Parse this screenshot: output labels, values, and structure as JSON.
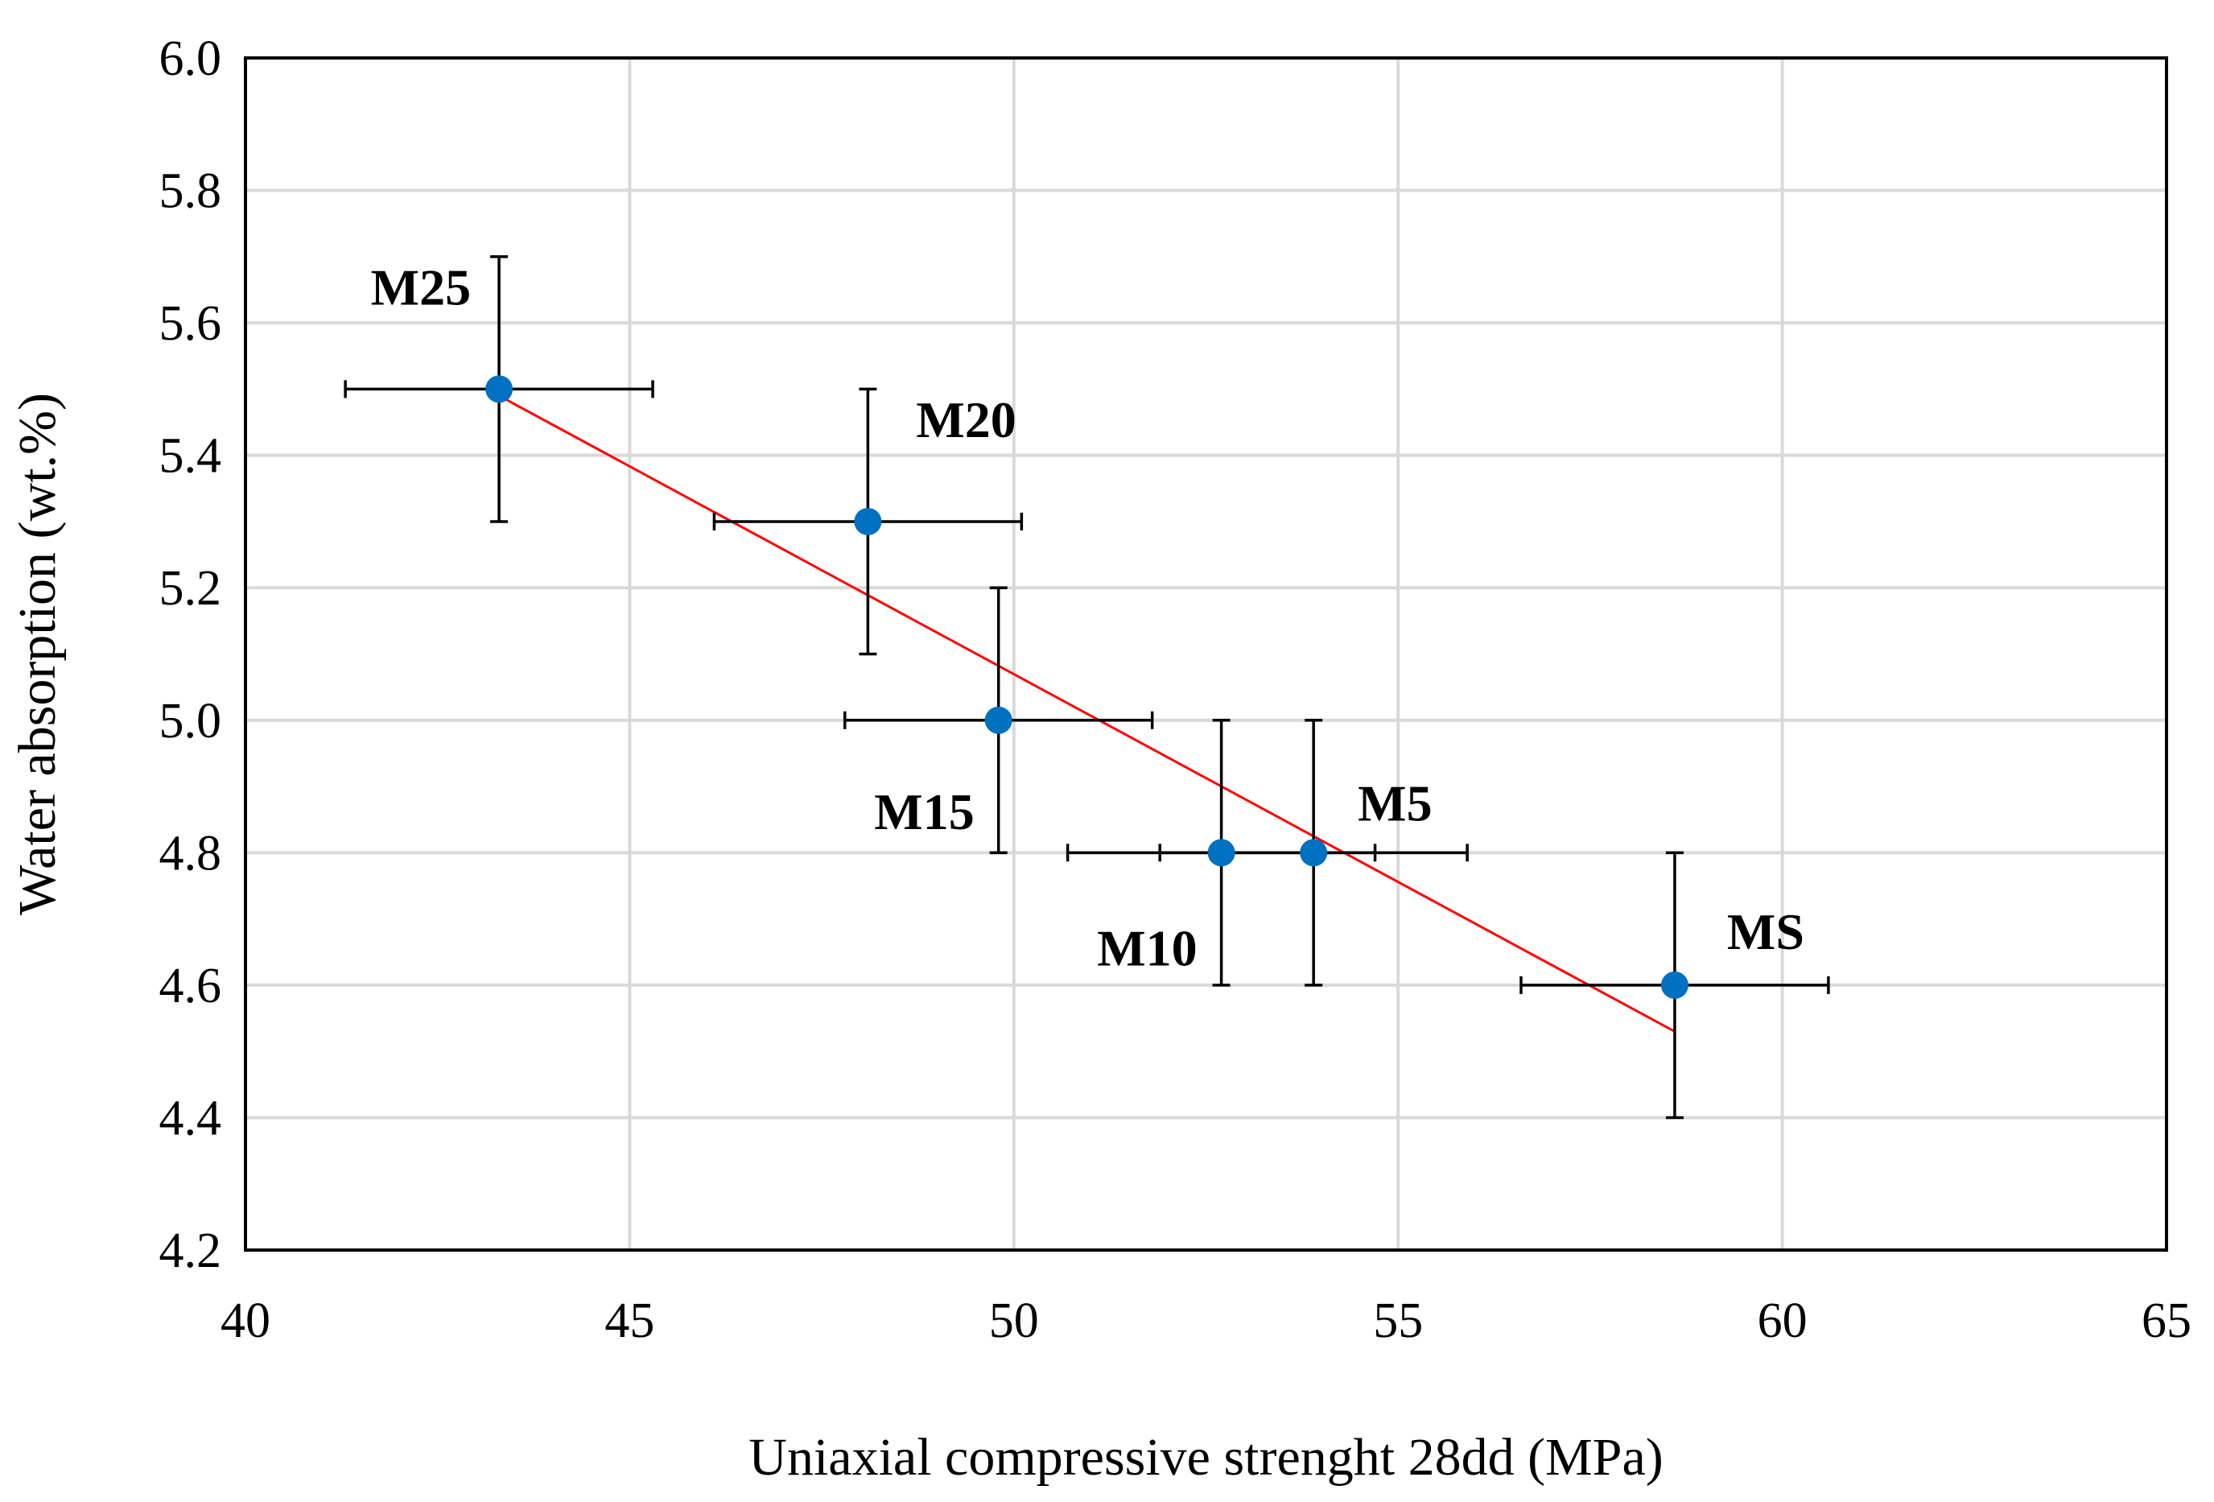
{
  "chart_data": {
    "type": "scatter",
    "title": "",
    "xlabel": "Uniaxial compressive strenght 28dd (MPa)",
    "ylabel": "Water absorption (wt.%)",
    "xlim": [
      40,
      65
    ],
    "ylim": [
      4.2,
      6.0
    ],
    "x_ticks": [
      40,
      45,
      50,
      55,
      60,
      65
    ],
    "y_ticks": [
      4.2,
      4.4,
      4.6,
      4.8,
      5.0,
      5.2,
      5.4,
      5.6,
      5.8,
      6.0
    ],
    "x_tick_labels": [
      "40",
      "45",
      "50",
      "55",
      "60",
      "65"
    ],
    "y_tick_labels": [
      "4.2",
      "4.4",
      "4.6",
      "4.8",
      "5.0",
      "5.2",
      "5.4",
      "5.6",
      "5.8",
      "6.0"
    ],
    "grid": true,
    "point_color": "#0070C0",
    "trend_color": "#FF0000",
    "points": [
      {
        "label": "M25",
        "x": 43.3,
        "y": 5.5,
        "x_err": 2.0,
        "y_err": 0.2,
        "label_pos": "upper-left"
      },
      {
        "label": "M20",
        "x": 48.1,
        "y": 5.3,
        "x_err": 2.0,
        "y_err": 0.2,
        "label_pos": "upper-right"
      },
      {
        "label": "M15",
        "x": 49.8,
        "y": 5.0,
        "x_err": 2.0,
        "y_err": 0.2,
        "label_pos": "lower-left"
      },
      {
        "label": "M10",
        "x": 52.7,
        "y": 4.8,
        "x_err": 2.0,
        "y_err": 0.2,
        "label_pos": "lower-left"
      },
      {
        "label": "M5",
        "x": 53.9,
        "y": 4.8,
        "x_err": 2.0,
        "y_err": 0.2,
        "label_pos": "upper-right"
      },
      {
        "label": "MS",
        "x": 58.6,
        "y": 4.6,
        "x_err": 2.0,
        "y_err": 0.2,
        "label_pos": "upper-right"
      }
    ],
    "trendline": {
      "x": [
        43.3,
        58.6
      ],
      "y": [
        5.49,
        4.53
      ]
    }
  }
}
